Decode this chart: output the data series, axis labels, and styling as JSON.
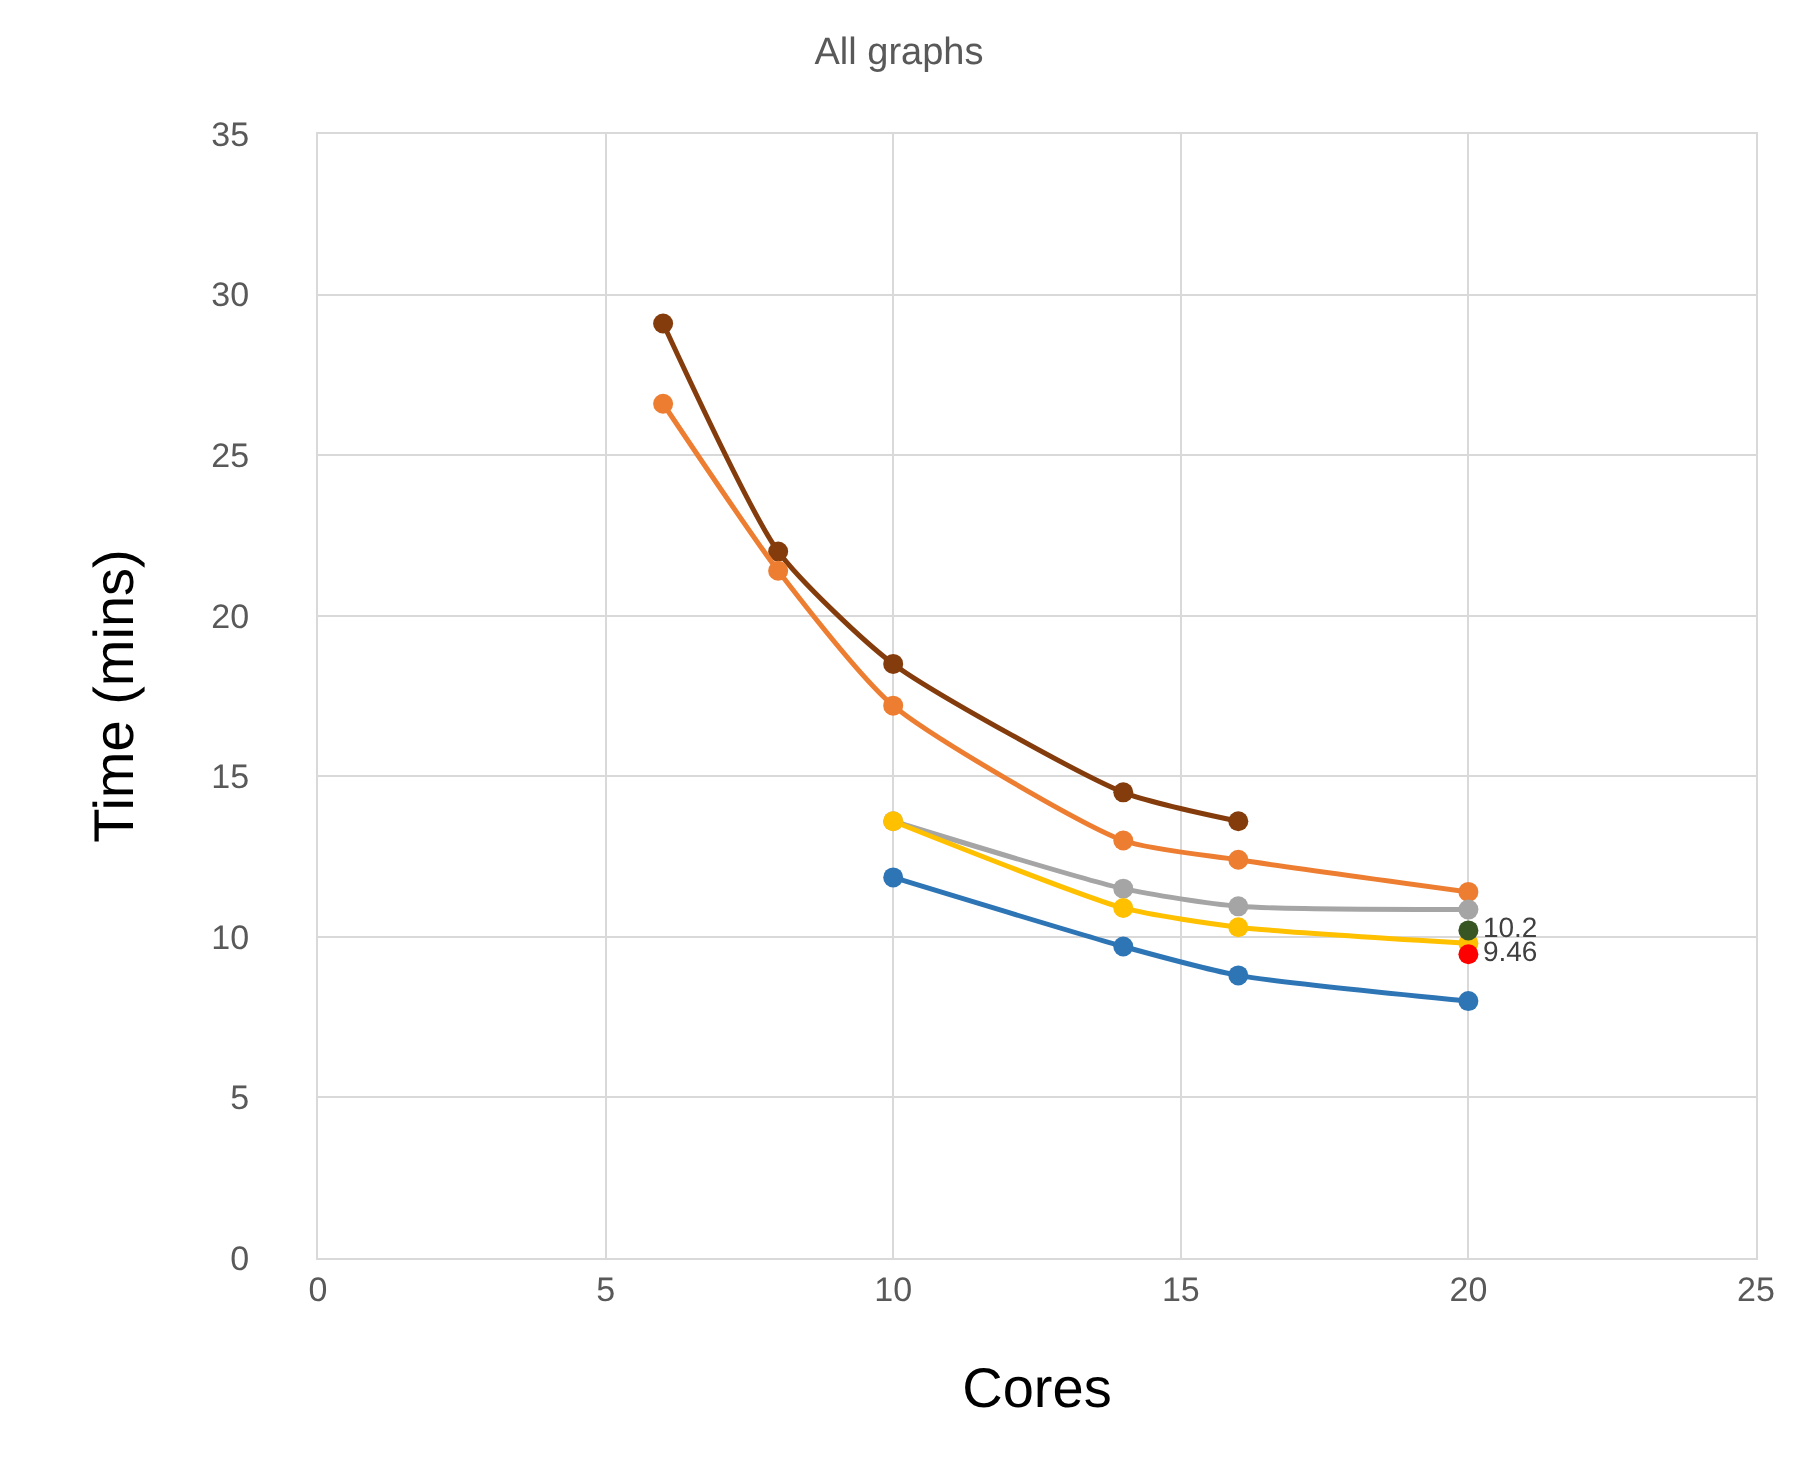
{
  "chart_data": {
    "type": "line",
    "title": "All graphs",
    "xlabel": "Cores",
    "ylabel": "Time (mins)",
    "xlim": [
      0,
      25
    ],
    "xticks": [
      0,
      5,
      10,
      15,
      20,
      25
    ],
    "ylim": [
      0,
      35
    ],
    "yticks": [
      0,
      5,
      10,
      15,
      20,
      25,
      30,
      35
    ],
    "grid": true,
    "marker": "circle",
    "line_style": "solid",
    "series": [
      {
        "color": "#843c0c",
        "x": [
          6,
          8,
          10,
          14,
          16
        ],
        "values": [
          29.1,
          22.0,
          18.5,
          14.5,
          13.6
        ]
      },
      {
        "color": "#ed7d31",
        "x": [
          6,
          8,
          10,
          14,
          16,
          20
        ],
        "values": [
          26.6,
          21.4,
          17.2,
          13.0,
          12.4,
          11.4
        ]
      },
      {
        "color": "#a5a5a5",
        "x": [
          10,
          14,
          16,
          20
        ],
        "values": [
          13.6,
          11.5,
          10.95,
          10.85
        ]
      },
      {
        "color": "#ffc000",
        "x": [
          10,
          14,
          16,
          20
        ],
        "values": [
          13.6,
          10.9,
          10.3,
          9.8
        ]
      },
      {
        "color": "#2e75b6",
        "x": [
          10,
          14,
          16,
          20
        ],
        "values": [
          11.85,
          9.7,
          8.8,
          8.0
        ]
      },
      {
        "color": "#375623",
        "x": [
          20
        ],
        "values": [
          10.2
        ],
        "value_labels": [
          "10.2"
        ]
      },
      {
        "color": "#ff0000",
        "x": [
          20
        ],
        "values": [
          9.46
        ],
        "value_labels": [
          "9.46"
        ]
      }
    ]
  }
}
